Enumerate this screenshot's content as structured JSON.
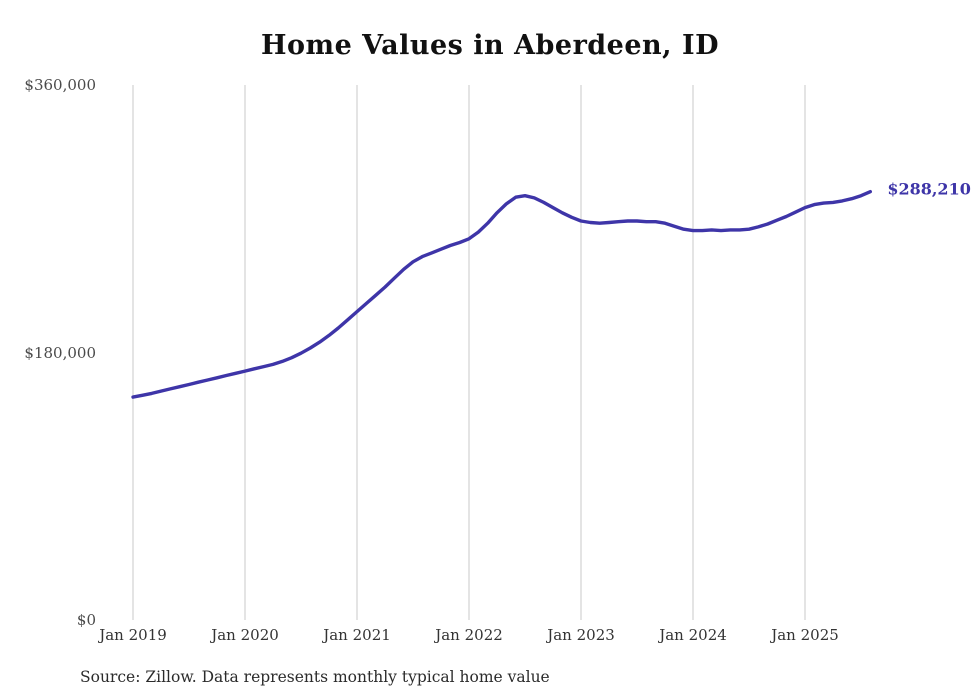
{
  "chart_data": {
    "type": "line",
    "title": "Home Values in Aberdeen, ID",
    "xlabel": "",
    "ylabel": "",
    "x_start": "Jan 2019",
    "x_interval": "monthly",
    "x_tick_labels": [
      "Jan 2019",
      "Jan 2020",
      "Jan 2021",
      "Jan 2022",
      "Jan 2023",
      "Jan 2024",
      "Jan 2025"
    ],
    "y_ticks": [
      {
        "label": "$0",
        "value": 0
      },
      {
        "label": "$180,000",
        "value": 180000
      },
      {
        "label": "$360,000",
        "value": 360000
      }
    ],
    "ylim": [
      0,
      360000
    ],
    "grid": "vertical-only",
    "legend": "none",
    "line_color": "#3e35a8",
    "end_label": "$288,210",
    "source": "Source: Zillow. Data represents monthly typical home value",
    "series": [
      {
        "name": "Typical home value",
        "values": [
          150000,
          151200,
          152500,
          154000,
          155500,
          157000,
          158500,
          160000,
          161500,
          163000,
          164500,
          166000,
          167500,
          169000,
          170500,
          172000,
          174000,
          176500,
          179500,
          183000,
          187000,
          191500,
          196500,
          202000,
          207500,
          213000,
          218500,
          224000,
          230000,
          236000,
          241000,
          244500,
          247000,
          249500,
          252000,
          254000,
          256500,
          261000,
          267000,
          274000,
          280000,
          284500,
          285500,
          284000,
          281000,
          277500,
          274000,
          271000,
          268500,
          267500,
          267000,
          267500,
          268000,
          268500,
          268500,
          268000,
          268000,
          267000,
          265000,
          263000,
          262000,
          262000,
          262500,
          262000,
          262500,
          262500,
          263000,
          264500,
          266500,
          269000,
          271500,
          274500,
          277500,
          279500,
          280500,
          281000,
          282000,
          283500,
          285500,
          288210
        ]
      }
    ]
  }
}
